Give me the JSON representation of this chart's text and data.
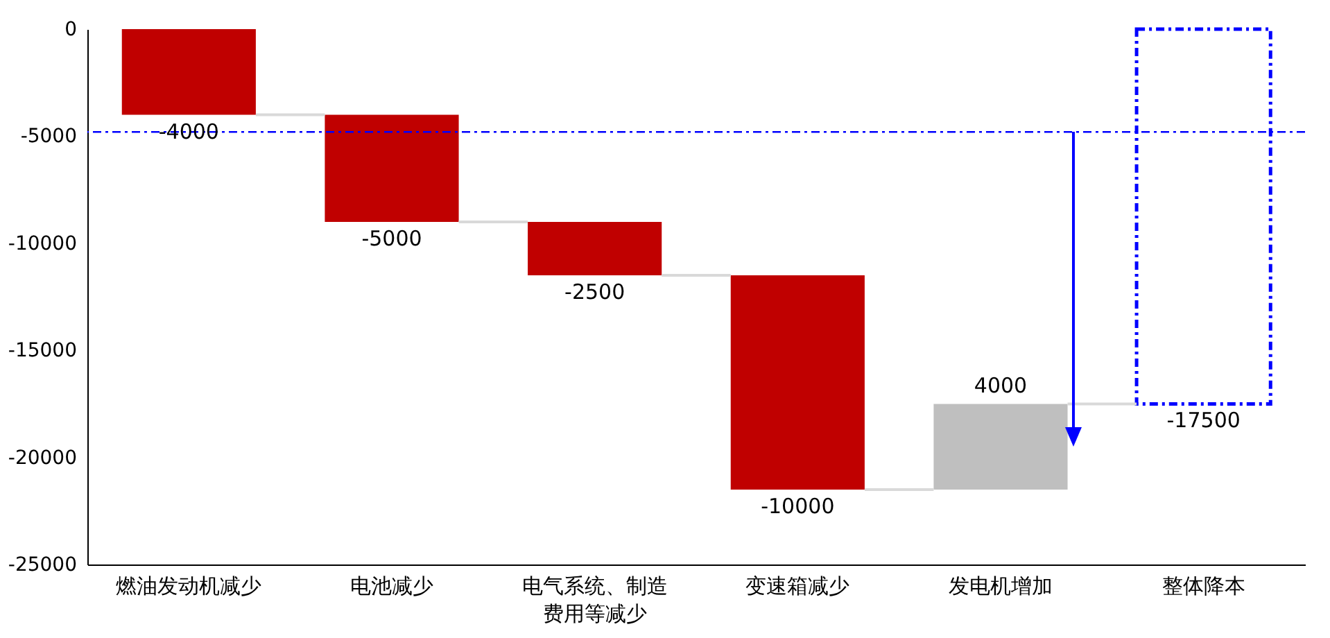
{
  "chart_data": {
    "type": "bar",
    "categories": [
      "燃油发动机减少",
      "电池减少",
      "电气系统、制造费用等减少",
      "变速箱减少",
      "发电机增加",
      "整体降本"
    ],
    "series": [
      {
        "colors": [
          "#c00000",
          "#c00000",
          "#c00000",
          "#c00000",
          "#bfbfbf",
          null
        ],
        "base": [
          0,
          -4000,
          -9000,
          -11500,
          -21500,
          null
        ],
        "values": [
          -4000,
          -5000,
          -2500,
          -10000,
          4000,
          null
        ],
        "value_labels": [
          "-4000",
          "-5000",
          "-2500",
          "-10000",
          "4000",
          null
        ]
      },
      {
        "color": "#0000ff",
        "line_style": "dashed",
        "base": [
          null,
          null,
          null,
          null,
          null,
          0
        ],
        "values": [
          null,
          null,
          null,
          null,
          null,
          -17500
        ],
        "value_labels": [
          null,
          null,
          null,
          null,
          null,
          "-17500"
        ]
      }
    ],
    "ylim": [
      -25000,
      0
    ],
    "yticks": [
      -25000,
      -20000,
      -15000,
      -10000,
      -5000,
      0
    ],
    "ref_lines": [
      {
        "axis": "y",
        "value": -4800,
        "color": "#0000ff",
        "line_style": "dashed"
      }
    ],
    "grid": false
  }
}
